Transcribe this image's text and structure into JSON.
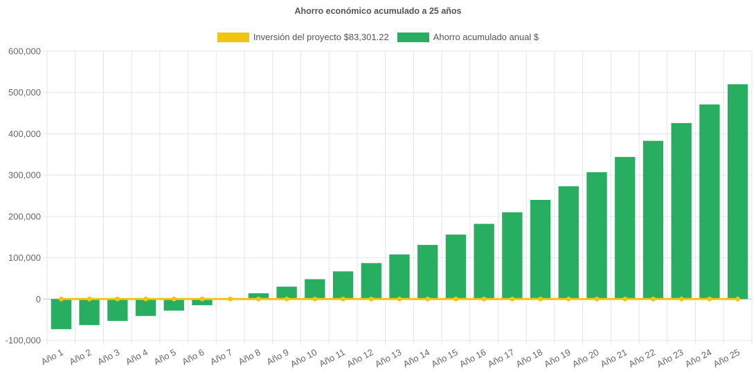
{
  "colors": {
    "investment": "#f1c40f",
    "savings": "#27ae60",
    "grid": "#e5e5e5",
    "zero_line": "#bdbdbd",
    "text": "#666666"
  },
  "chart_data": {
    "type": "bar",
    "title": "Ahorro económico acumulado a 25 años",
    "legend_position": "top",
    "grid": true,
    "categories": [
      "Año 1",
      "Año 2",
      "Año 3",
      "Año 4",
      "Año 5",
      "Año 6",
      "Año 7",
      "Año 8",
      "Año 9",
      "Año 10",
      "Año 11",
      "Año 12",
      "Año 13",
      "Año 14",
      "Año 15",
      "Año 16",
      "Año 17",
      "Año 18",
      "Año 19",
      "Año 20",
      "Año 21",
      "Año 22",
      "Año 23",
      "Año 24",
      "Año 25"
    ],
    "ylim": [
      -100000,
      600000
    ],
    "yticks": [
      -100000,
      0,
      100000,
      200000,
      300000,
      400000,
      500000,
      600000
    ],
    "ytick_labels": [
      "-100,000",
      "0",
      "100,000",
      "200,000",
      "300,000",
      "400,000",
      "500,000",
      "600,000"
    ],
    "series": [
      {
        "name": "Inversión del proyecto $83,301.22",
        "type": "line",
        "color": "#f1c40f",
        "values": [
          0,
          0,
          0,
          0,
          0,
          0,
          0,
          0,
          0,
          0,
          0,
          0,
          0,
          0,
          0,
          0,
          0,
          0,
          0,
          0,
          0,
          0,
          0,
          0,
          0
        ]
      },
      {
        "name": "Ahorro acumulado anual $",
        "type": "bar",
        "color": "#27ae60",
        "values": [
          -73000,
          -63000,
          -53000,
          -41000,
          -28000,
          -15000,
          -1000,
          14000,
          30000,
          48000,
          67000,
          87000,
          108000,
          131000,
          156000,
          182000,
          210000,
          240000,
          273000,
          307000,
          344000,
          383000,
          426000,
          471000,
          520000
        ]
      }
    ]
  }
}
